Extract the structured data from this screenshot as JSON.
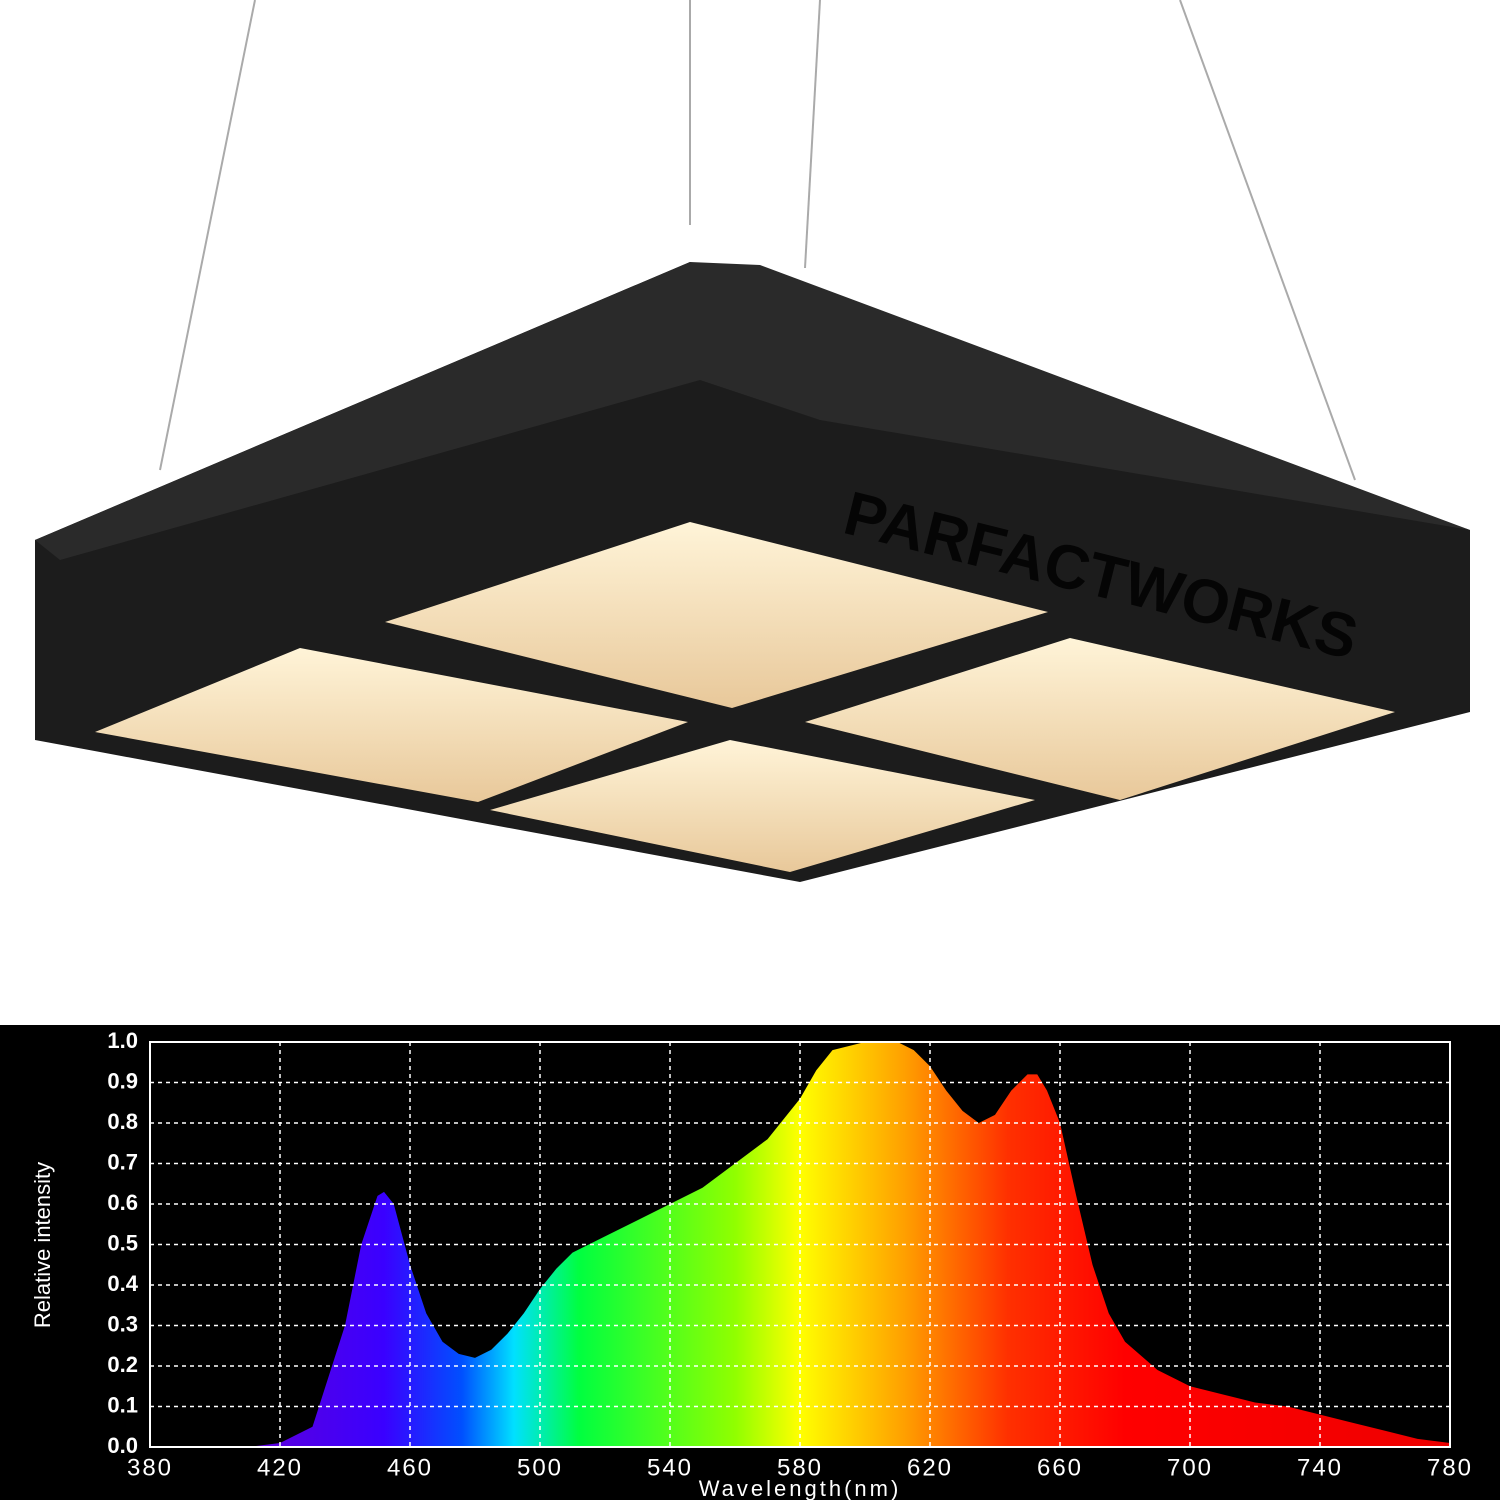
{
  "header": {
    "brand": "PARFACTWORKS"
  },
  "chart_data": {
    "type": "area",
    "y_label": "Relative intensity",
    "x_label": "Wavelength(nm)",
    "x": [
      380,
      390,
      400,
      410,
      420,
      430,
      440,
      445,
      450,
      452,
      455,
      460,
      465,
      470,
      475,
      480,
      485,
      490,
      495,
      500,
      505,
      510,
      520,
      530,
      540,
      550,
      560,
      570,
      580,
      585,
      590,
      600,
      610,
      615,
      620,
      625,
      630,
      635,
      640,
      645,
      650,
      653,
      656,
      660,
      665,
      670,
      675,
      680,
      690,
      700,
      710,
      720,
      730,
      740,
      750,
      760,
      770,
      780
    ],
    "values": [
      0,
      0,
      0,
      0,
      0.01,
      0.05,
      0.3,
      0.5,
      0.62,
      0.63,
      0.6,
      0.45,
      0.33,
      0.26,
      0.23,
      0.22,
      0.24,
      0.28,
      0.33,
      0.39,
      0.44,
      0.48,
      0.52,
      0.56,
      0.6,
      0.64,
      0.7,
      0.76,
      0.86,
      0.93,
      0.98,
      1.0,
      1.0,
      0.98,
      0.94,
      0.88,
      0.83,
      0.8,
      0.82,
      0.88,
      0.92,
      0.92,
      0.88,
      0.8,
      0.62,
      0.45,
      0.33,
      0.26,
      0.19,
      0.15,
      0.13,
      0.11,
      0.1,
      0.08,
      0.06,
      0.04,
      0.02,
      0.01
    ],
    "xlim": [
      380,
      780
    ],
    "xticks": [
      380,
      420,
      460,
      500,
      540,
      580,
      620,
      660,
      700,
      740,
      780
    ],
    "ylim": [
      0,
      1
    ],
    "yticks": [
      {
        "value": 0,
        "label": "0.0"
      },
      0.1,
      0.2,
      0.3,
      0.4,
      0.5,
      0.6,
      0.7,
      0.8,
      0.9,
      {
        "value": 1,
        "label": "1.0"
      }
    ],
    "grid": true
  }
}
